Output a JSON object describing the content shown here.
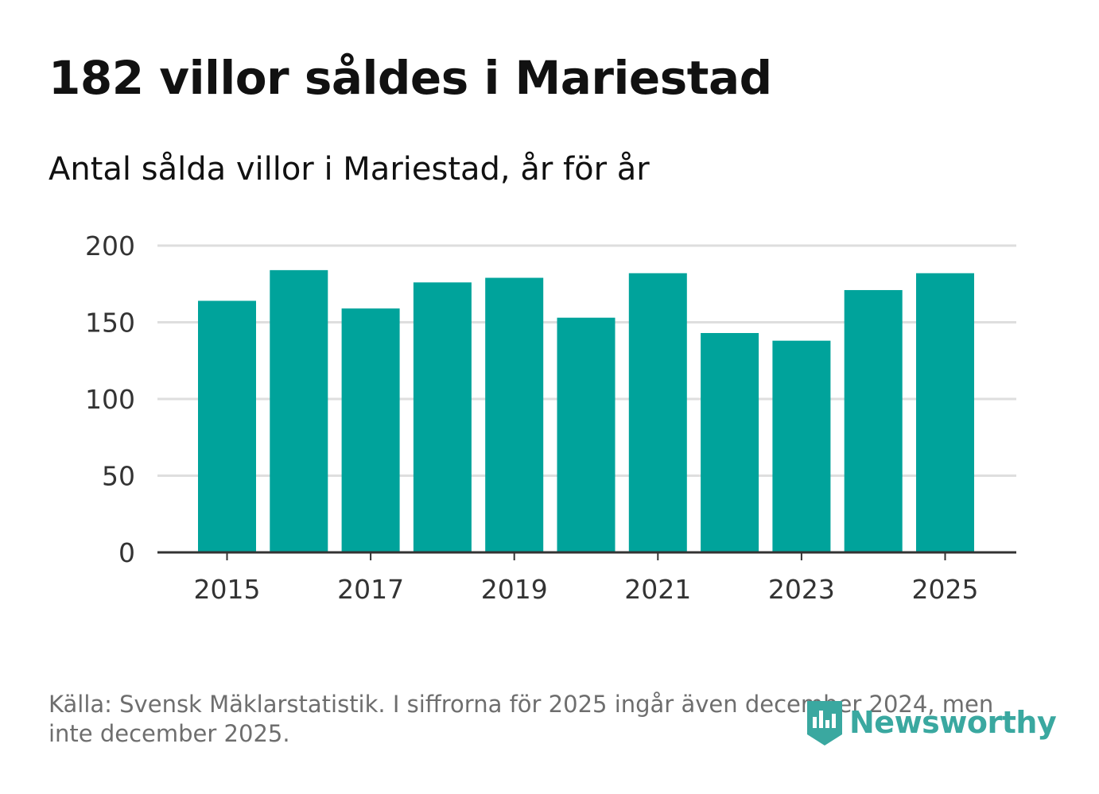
{
  "header": {
    "title": "182 villor såldes i Mariestad",
    "subtitle": "Antal sålda villor i Mariestad, år för år"
  },
  "chart_data": {
    "type": "bar",
    "title": "182 villor såldes i Mariestad",
    "subtitle": "Antal sålda villor i Mariestad, år för år",
    "categories": [
      "2015",
      "2016",
      "2017",
      "2018",
      "2019",
      "2020",
      "2021",
      "2022",
      "2023",
      "2024",
      "2025"
    ],
    "values": [
      164,
      184,
      159,
      176,
      179,
      153,
      182,
      143,
      138,
      171,
      182
    ],
    "x_tick_labels": [
      "2015",
      "2017",
      "2019",
      "2021",
      "2023",
      "2025"
    ],
    "y_ticks": [
      0,
      50,
      100,
      150,
      200
    ],
    "ylim": [
      0,
      200
    ],
    "xlabel": "",
    "ylabel": "",
    "grid": true,
    "legend": "none",
    "bar_color": "#00a39b"
  },
  "footer": {
    "source": "Källa: Svensk Mäklarstatistik. I siffrorna för 2025 ingår även december 2024, men inte december 2025.",
    "brand": "Newsworthy",
    "brand_color": "#3aa8a0"
  }
}
